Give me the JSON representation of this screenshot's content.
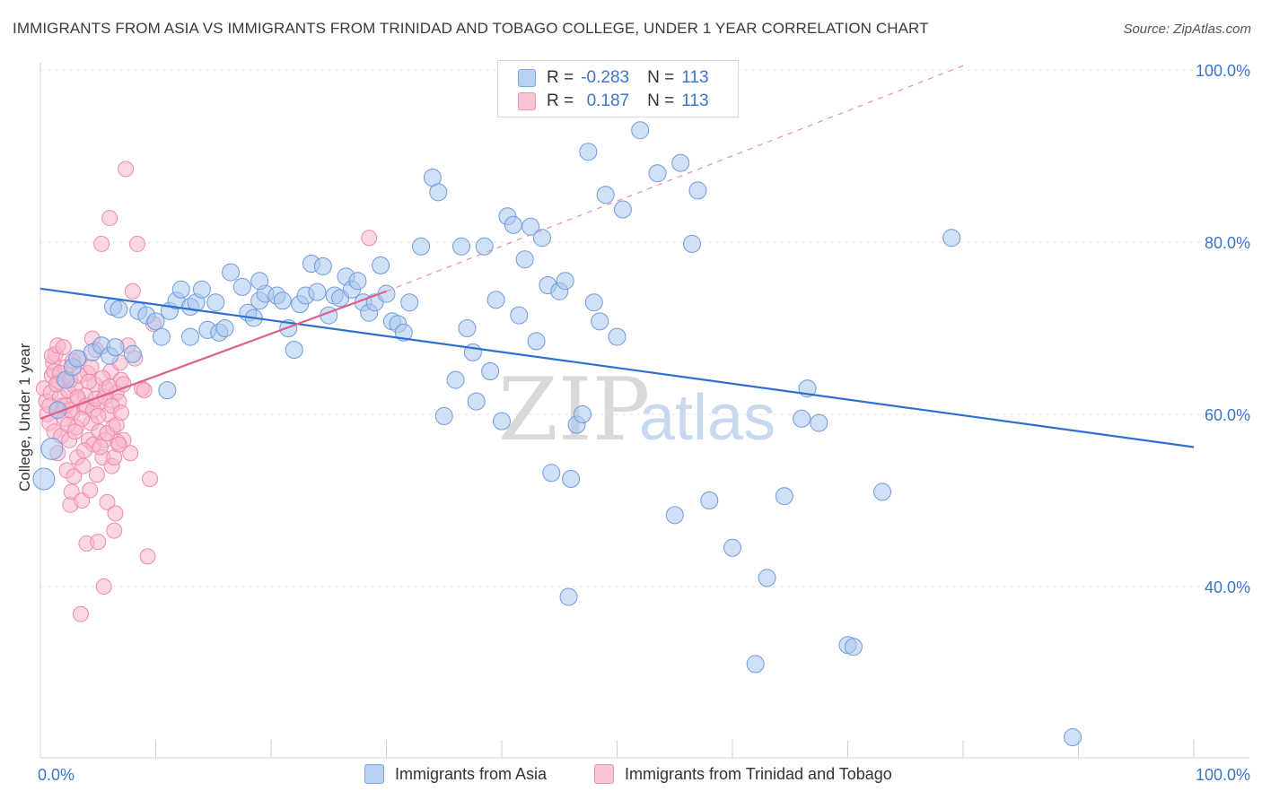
{
  "header": {
    "title": "IMMIGRANTS FROM ASIA VS IMMIGRANTS FROM TRINIDAD AND TOBAGO COLLEGE, UNDER 1 YEAR CORRELATION CHART",
    "source": "Source: ZipAtlas.com"
  },
  "legend": {
    "r_label": "R =",
    "n_label": "N =",
    "series1_r": "-0.283",
    "series1_n": "113",
    "series2_r": "0.187",
    "series2_n": "113"
  },
  "watermark": {
    "zip": "ZIP",
    "atlas": "atlas"
  },
  "colors": {
    "blue_fill": "#a9c6ef",
    "blue_stroke": "#6f9bdb",
    "blue_line": "#2f6fd1",
    "pink_fill": "#f7b6cc",
    "pink_stroke": "#ec8bae",
    "pink_line": "#e0608c",
    "axis_text": "#3b74cc"
  },
  "chart_data": {
    "type": "scatter",
    "title": "IMMIGRANTS FROM ASIA VS IMMIGRANTS FROM TRINIDAD AND TOBAGO COLLEGE, UNDER 1 YEAR CORRELATION CHART",
    "xlabel": "",
    "ylabel": "College, Under 1 year",
    "xlim": [
      0,
      100
    ],
    "ylim": [
      20,
      102
    ],
    "x_tick_labels": [
      "0.0%",
      "100.0%"
    ],
    "y_tick_labels": [
      {
        "value": 40,
        "label": "40.0%"
      },
      {
        "value": 60,
        "label": "60.0%"
      },
      {
        "value": 80,
        "label": "80.0%"
      },
      {
        "value": 100,
        "label": "100.0%"
      }
    ],
    "grid": true,
    "series": [
      {
        "name": "Immigrants from Asia",
        "color": "#a9c6ef",
        "trend": {
          "x": [
            0,
            100
          ],
          "y": [
            74.6,
            56.2
          ],
          "style": "solid"
        },
        "points": [
          [
            0.3,
            52.5
          ],
          [
            1.0,
            56.0
          ],
          [
            1.5,
            60.5
          ],
          [
            2.2,
            64.0
          ],
          [
            2.8,
            65.5
          ],
          [
            3.2,
            66.5
          ],
          [
            4.5,
            67.2
          ],
          [
            5.3,
            68.0
          ],
          [
            6.0,
            66.8
          ],
          [
            6.5,
            67.8
          ],
          [
            6.3,
            72.5
          ],
          [
            6.8,
            72.2
          ],
          [
            8.5,
            72.0
          ],
          [
            9.2,
            71.5
          ],
          [
            10.0,
            70.8
          ],
          [
            10.5,
            69.0
          ],
          [
            11.2,
            72.0
          ],
          [
            11.0,
            62.8
          ],
          [
            11.8,
            73.2
          ],
          [
            12.2,
            74.5
          ],
          [
            13.0,
            72.5
          ],
          [
            13.0,
            69.0
          ],
          [
            13.5,
            73.0
          ],
          [
            14.0,
            74.5
          ],
          [
            14.5,
            69.8
          ],
          [
            15.2,
            73.0
          ],
          [
            15.5,
            69.5
          ],
          [
            16.0,
            70.0
          ],
          [
            16.5,
            76.5
          ],
          [
            17.5,
            74.8
          ],
          [
            18.0,
            71.8
          ],
          [
            18.5,
            71.2
          ],
          [
            19.0,
            73.2
          ],
          [
            19.5,
            74.0
          ],
          [
            19.0,
            75.5
          ],
          [
            20.5,
            73.8
          ],
          [
            21.0,
            73.2
          ],
          [
            21.5,
            70.0
          ],
          [
            22.0,
            67.5
          ],
          [
            22.5,
            72.8
          ],
          [
            23.0,
            73.8
          ],
          [
            23.5,
            77.5
          ],
          [
            24.5,
            77.2
          ],
          [
            24.0,
            74.2
          ],
          [
            25.5,
            73.8
          ],
          [
            26.0,
            73.5
          ],
          [
            25.0,
            71.5
          ],
          [
            26.5,
            76.0
          ],
          [
            27.0,
            74.5
          ],
          [
            27.5,
            75.5
          ],
          [
            28.0,
            73.0
          ],
          [
            28.5,
            71.8
          ],
          [
            29.0,
            73.0
          ],
          [
            29.5,
            77.3
          ],
          [
            30.0,
            74.0
          ],
          [
            30.5,
            70.8
          ],
          [
            31.0,
            70.5
          ],
          [
            31.5,
            69.5
          ],
          [
            32.0,
            73.0
          ],
          [
            33.0,
            79.5
          ],
          [
            34.0,
            87.5
          ],
          [
            34.5,
            85.8
          ],
          [
            35.0,
            59.8
          ],
          [
            36.0,
            64.0
          ],
          [
            36.5,
            79.5
          ],
          [
            37.0,
            70.0
          ],
          [
            37.5,
            67.2
          ],
          [
            37.8,
            61.5
          ],
          [
            38.5,
            79.5
          ],
          [
            39.0,
            65.0
          ],
          [
            39.5,
            73.3
          ],
          [
            40.0,
            59.2
          ],
          [
            40.5,
            83.0
          ],
          [
            41.0,
            82.0
          ],
          [
            41.5,
            71.5
          ],
          [
            42.0,
            78.0
          ],
          [
            42.5,
            81.8
          ],
          [
            43.0,
            68.5
          ],
          [
            43.5,
            80.5
          ],
          [
            44.0,
            75.0
          ],
          [
            44.3,
            53.2
          ],
          [
            45.0,
            74.3
          ],
          [
            45.5,
            75.5
          ],
          [
            45.8,
            38.8
          ],
          [
            46.0,
            52.5
          ],
          [
            46.5,
            58.8
          ],
          [
            47.0,
            60.0
          ],
          [
            47.5,
            90.5
          ],
          [
            48.0,
            73.0
          ],
          [
            48.5,
            70.8
          ],
          [
            49.0,
            85.5
          ],
          [
            50.0,
            69.0
          ],
          [
            50.5,
            83.8
          ],
          [
            52.0,
            93.0
          ],
          [
            53.5,
            88.0
          ],
          [
            55.0,
            48.3
          ],
          [
            55.5,
            89.2
          ],
          [
            56.5,
            79.8
          ],
          [
            57.0,
            86.0
          ],
          [
            58.0,
            50.0
          ],
          [
            60.0,
            44.5
          ],
          [
            62.0,
            31.0
          ],
          [
            63.0,
            41.0
          ],
          [
            64.5,
            50.5
          ],
          [
            66.0,
            59.5
          ],
          [
            66.5,
            63.0
          ],
          [
            67.5,
            59.0
          ],
          [
            70.0,
            33.2
          ],
          [
            70.5,
            33.0
          ],
          [
            73.0,
            51.0
          ],
          [
            79.0,
            80.5
          ],
          [
            89.5,
            22.5
          ],
          [
            8.0,
            67.0
          ]
        ]
      },
      {
        "name": "Immigrants from Trinidad and Tobago",
        "color": "#f7b6cc",
        "trend": {
          "x": [
            0,
            30
          ],
          "y": [
            59.5,
            74.3
          ],
          "style": "solid",
          "extended": {
            "x": [
              30,
              80
            ],
            "y": [
              74.3,
              100.5
            ],
            "style": "dashed"
          }
        },
        "points": [
          [
            0.3,
            63.0
          ],
          [
            0.5,
            61.5
          ],
          [
            0.6,
            60.0
          ],
          [
            0.8,
            59.0
          ],
          [
            0.9,
            62.5
          ],
          [
            1.0,
            64.5
          ],
          [
            1.1,
            66.0
          ],
          [
            1.2,
            58.0
          ],
          [
            1.3,
            67.0
          ],
          [
            1.4,
            60.5
          ],
          [
            1.5,
            55.5
          ],
          [
            1.6,
            63.8
          ],
          [
            1.7,
            62.0
          ],
          [
            1.8,
            57.5
          ],
          [
            1.9,
            61.0
          ],
          [
            2.0,
            64.0
          ],
          [
            2.1,
            59.5
          ],
          [
            2.2,
            65.5
          ],
          [
            2.3,
            53.5
          ],
          [
            2.4,
            62.8
          ],
          [
            2.5,
            57.0
          ],
          [
            2.6,
            49.5
          ],
          [
            2.7,
            51.0
          ],
          [
            2.8,
            60.2
          ],
          [
            2.9,
            52.8
          ],
          [
            3.0,
            63.2
          ],
          [
            3.1,
            58.5
          ],
          [
            3.2,
            55.0
          ],
          [
            3.3,
            61.8
          ],
          [
            3.4,
            66.5
          ],
          [
            3.5,
            36.8
          ],
          [
            3.6,
            50.0
          ],
          [
            3.7,
            54.0
          ],
          [
            3.8,
            60.8
          ],
          [
            3.9,
            62.2
          ],
          [
            4.0,
            45.0
          ],
          [
            4.1,
            64.8
          ],
          [
            4.2,
            57.0
          ],
          [
            4.3,
            51.2
          ],
          [
            4.4,
            59.0
          ],
          [
            4.5,
            68.8
          ],
          [
            4.6,
            56.5
          ],
          [
            4.7,
            63.5
          ],
          [
            4.8,
            67.5
          ],
          [
            4.9,
            53.0
          ],
          [
            5.0,
            45.2
          ],
          [
            5.1,
            58.0
          ],
          [
            5.2,
            61.5
          ],
          [
            5.3,
            79.8
          ],
          [
            5.4,
            55.0
          ],
          [
            5.5,
            40.0
          ],
          [
            5.6,
            57.0
          ],
          [
            5.7,
            63.0
          ],
          [
            5.8,
            49.8
          ],
          [
            5.9,
            60.0
          ],
          [
            6.0,
            82.8
          ],
          [
            6.1,
            65.0
          ],
          [
            6.2,
            54.0
          ],
          [
            6.3,
            58.5
          ],
          [
            6.4,
            46.5
          ],
          [
            6.5,
            48.5
          ],
          [
            6.6,
            62.5
          ],
          [
            6.7,
            56.8
          ],
          [
            6.8,
            61.5
          ],
          [
            6.9,
            66.0
          ],
          [
            7.0,
            64.0
          ],
          [
            7.2,
            57.0
          ],
          [
            7.4,
            88.5
          ],
          [
            7.6,
            68.0
          ],
          [
            7.8,
            55.5
          ],
          [
            8.0,
            74.3
          ],
          [
            8.2,
            66.5
          ],
          [
            8.4,
            79.8
          ],
          [
            8.8,
            63.0
          ],
          [
            9.0,
            62.8
          ],
          [
            9.3,
            43.5
          ],
          [
            9.5,
            52.5
          ],
          [
            9.8,
            70.5
          ],
          [
            28.5,
            80.5
          ],
          [
            1.0,
            66.8
          ],
          [
            1.2,
            65.0
          ],
          [
            1.5,
            68.0
          ],
          [
            1.7,
            64.8
          ],
          [
            2.0,
            67.8
          ],
          [
            2.2,
            61.0
          ],
          [
            2.4,
            58.8
          ],
          [
            2.6,
            64.0
          ],
          [
            2.8,
            66.2
          ],
          [
            3.0,
            58.0
          ],
          [
            3.2,
            62.0
          ],
          [
            3.4,
            64.5
          ],
          [
            3.6,
            59.5
          ],
          [
            3.8,
            55.8
          ],
          [
            4.0,
            61.0
          ],
          [
            4.2,
            63.8
          ],
          [
            4.4,
            65.5
          ],
          [
            4.6,
            60.5
          ],
          [
            4.8,
            61.8
          ],
          [
            5.0,
            59.8
          ],
          [
            5.2,
            56.2
          ],
          [
            5.4,
            64.2
          ],
          [
            5.6,
            62.0
          ],
          [
            5.8,
            57.8
          ],
          [
            6.0,
            63.2
          ],
          [
            6.2,
            61.0
          ],
          [
            6.4,
            55.0
          ],
          [
            6.6,
            58.8
          ],
          [
            6.8,
            56.5
          ],
          [
            7.0,
            60.2
          ],
          [
            7.2,
            63.5
          ],
          [
            0.8,
            61.0
          ],
          [
            1.4,
            63.5
          ],
          [
            2.6,
            60.5
          ]
        ]
      }
    ]
  },
  "bottom_legend": {
    "series1": "Immigrants from Asia",
    "series2": "Immigrants from Trinidad and Tobago"
  }
}
